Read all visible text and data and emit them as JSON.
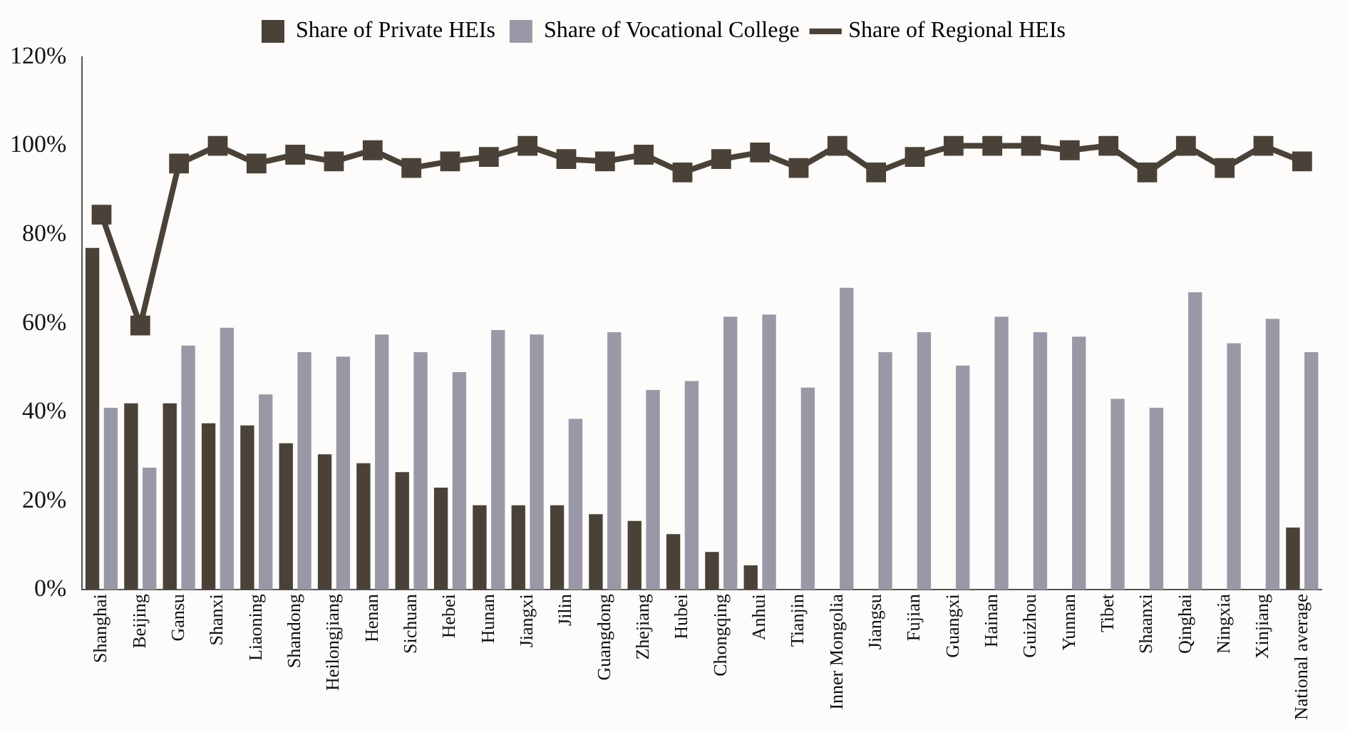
{
  "chart_data": {
    "type": "bar",
    "categories": [
      "Shanghai",
      "Beijing",
      "Gansu",
      "Shanxi",
      "Liaoning",
      "Shandong",
      "Heilongjiang",
      "Henan",
      "Sichuan",
      "Hebei",
      "Hunan",
      "Jiangxi",
      "Jilin",
      "Guangdong",
      "Zhejiang",
      "Hubei",
      "Chongqing",
      "Anhui",
      "Tianjin",
      "Inner Mongolia",
      "Jiangsu",
      "Fujian",
      "Guangxi",
      "Hainan",
      "Guizhou",
      "Yunnan",
      "Tibet",
      "Shaanxi",
      "Qinghai",
      "Ningxia",
      "Xinjiang",
      "National average"
    ],
    "series": [
      {
        "name": "Share of Private HEIs",
        "color": "#4a4238",
        "values": [
          77,
          42,
          42,
          37.5,
          37,
          33,
          30.5,
          28.5,
          26.5,
          23,
          19,
          19,
          19,
          17,
          15.5,
          12.5,
          8.5,
          5.5,
          null,
          null,
          null,
          null,
          null,
          null,
          null,
          null,
          null,
          null,
          null,
          null,
          null,
          14
        ]
      },
      {
        "name": "Share of Vocational College",
        "color": "#9a98a6",
        "values": [
          41,
          27.5,
          55,
          59,
          44,
          53.5,
          52.5,
          57.5,
          53.5,
          49,
          58.5,
          57.5,
          38.5,
          58,
          45,
          47,
          61.5,
          62,
          45.5,
          68,
          53.5,
          58,
          50.5,
          61.5,
          58,
          57,
          43,
          41,
          67,
          55.5,
          61,
          53.5
        ]
      },
      {
        "name": "Share of Regional HEIs",
        "type": "line",
        "color": "#4a4238",
        "marker": "square",
        "values": [
          84.5,
          59.5,
          96,
          100,
          96,
          98,
          96.5,
          99,
          95,
          96.5,
          97.5,
          100,
          97,
          96.5,
          98,
          94,
          97,
          98.5,
          95,
          100,
          94,
          97.5,
          100,
          100,
          100,
          99,
          100,
          94,
          100,
          95,
          100,
          96.5
        ]
      }
    ],
    "ylim": [
      0,
      120
    ],
    "yticks": [
      {
        "value": 0,
        "label": "0%"
      },
      {
        "value": 20,
        "label": "20%"
      },
      {
        "value": 40,
        "label": "40%"
      },
      {
        "value": 60,
        "label": "60%"
      },
      {
        "value": 80,
        "label": "80%"
      },
      {
        "value": 100,
        "label": "100%"
      },
      {
        "value": 120,
        "label": "120%"
      }
    ],
    "grid": false,
    "legend": "top"
  }
}
